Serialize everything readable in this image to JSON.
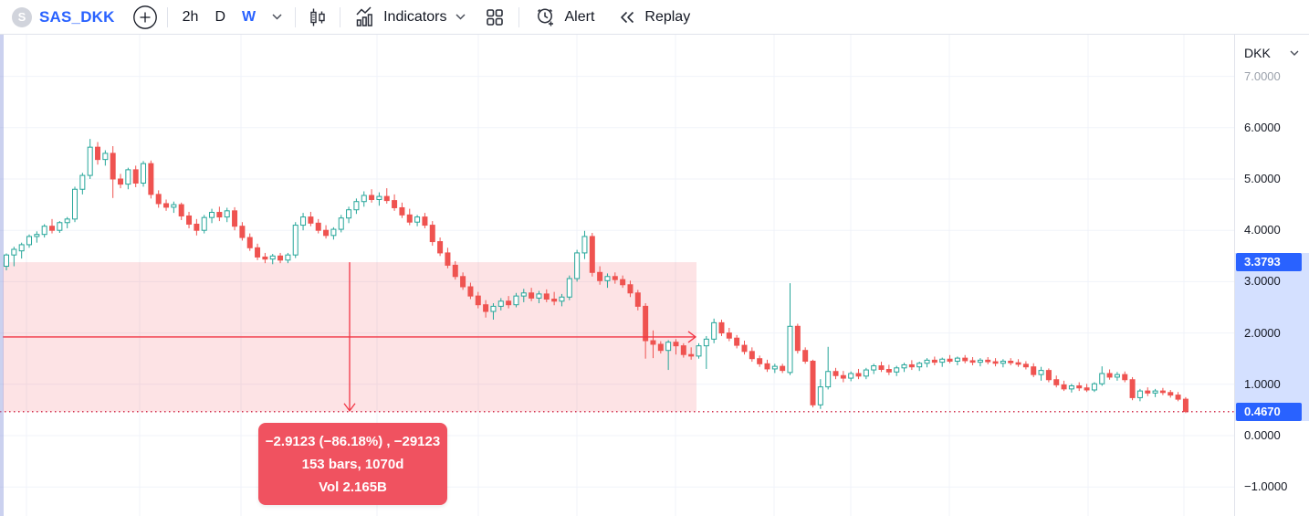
{
  "toolbar": {
    "logo_letter": "S",
    "symbol": "SAS_DKK",
    "intervals": [
      {
        "label": "2h",
        "active": false
      },
      {
        "label": "D",
        "active": false
      },
      {
        "label": "W",
        "active": true
      }
    ],
    "indicators_label": "Indicators",
    "alert_label": "Alert",
    "replay_label": "Replay"
  },
  "price_axis": {
    "currency": "DKK",
    "labels": [
      "7.0000",
      "6.0000",
      "5.0000",
      "4.0000",
      "3.0000",
      "2.0000",
      "1.0000",
      "0.0000",
      "−1.0000"
    ],
    "badges": [
      {
        "value": "3.3793",
        "price": 3.3793
      },
      {
        "value": "0.4670",
        "price": 0.467
      }
    ]
  },
  "measure_tool": {
    "line1": "−2.9123 (−86.18%) , −29123",
    "line2": "153 bars, 1070d",
    "line3": "Vol 2.165B",
    "start_price": 3.3793,
    "end_price": 0.467,
    "x_start": 3,
    "x_end": 763
  },
  "colors": {
    "accent_blue": "#2962ff",
    "up_candle": "#26a69a",
    "down_candle": "#ef5350",
    "measure_red": "#f23645",
    "measure_fill": "rgba(242,54,69,0.14)",
    "dotted_line": "#d2304e",
    "grid": "#f0f3fa",
    "badge_bg": "#2962ff"
  },
  "chart_data": {
    "type": "candlestick",
    "symbol": "SAS_DKK",
    "interval": "W",
    "currency": "DKK",
    "ylim": [
      -1.6,
      7.4
    ],
    "y_axis_ticks": [
      7,
      6,
      5,
      4,
      3,
      2,
      1,
      0,
      -1
    ],
    "last_price": 0.467,
    "measured_change": -2.9123,
    "measured_change_pct": -86.18,
    "measured_bars": 153,
    "measured_days": 1070,
    "measured_volume": "2.165B",
    "candles": [
      [
        3.3,
        3.55,
        3.22,
        3.52
      ],
      [
        3.52,
        3.68,
        3.3,
        3.63
      ],
      [
        3.6,
        3.76,
        3.45,
        3.72
      ],
      [
        3.72,
        3.92,
        3.66,
        3.88
      ],
      [
        3.88,
        3.98,
        3.76,
        3.92
      ],
      [
        3.92,
        4.12,
        3.86,
        4.08
      ],
      [
        4.08,
        4.22,
        3.94,
        4.0
      ],
      [
        4.0,
        4.18,
        3.95,
        4.15
      ],
      [
        4.15,
        4.26,
        4.04,
        4.22
      ],
      [
        4.22,
        4.85,
        4.16,
        4.8
      ],
      [
        4.8,
        5.12,
        4.7,
        5.07
      ],
      [
        5.07,
        5.78,
        5.0,
        5.62
      ],
      [
        5.62,
        5.72,
        5.28,
        5.38
      ],
      [
        5.38,
        5.56,
        5.26,
        5.5
      ],
      [
        5.5,
        5.64,
        4.63,
        5.0
      ],
      [
        5.0,
        5.1,
        4.82,
        4.9
      ],
      [
        4.9,
        5.22,
        4.8,
        5.18
      ],
      [
        5.18,
        5.26,
        4.84,
        4.92
      ],
      [
        4.92,
        5.35,
        4.85,
        5.3
      ],
      [
        5.3,
        5.36,
        4.62,
        4.7
      ],
      [
        4.7,
        4.78,
        4.44,
        4.52
      ],
      [
        4.52,
        4.6,
        4.38,
        4.45
      ],
      [
        4.45,
        4.56,
        4.34,
        4.5
      ],
      [
        4.5,
        4.54,
        4.2,
        4.28
      ],
      [
        4.28,
        4.36,
        4.04,
        4.12
      ],
      [
        4.12,
        4.22,
        3.9,
        4.0
      ],
      [
        4.0,
        4.3,
        3.94,
        4.25
      ],
      [
        4.25,
        4.42,
        4.14,
        4.35
      ],
      [
        4.35,
        4.46,
        4.18,
        4.26
      ],
      [
        4.26,
        4.44,
        4.16,
        4.38
      ],
      [
        4.38,
        4.45,
        4.0,
        4.08
      ],
      [
        4.08,
        4.16,
        3.8,
        3.86
      ],
      [
        3.86,
        3.94,
        3.6,
        3.66
      ],
      [
        3.66,
        3.74,
        3.42,
        3.48
      ],
      [
        3.48,
        3.56,
        3.36,
        3.44
      ],
      [
        3.44,
        3.54,
        3.34,
        3.5
      ],
      [
        3.5,
        3.56,
        3.36,
        3.42
      ],
      [
        3.42,
        3.56,
        3.36,
        3.52
      ],
      [
        3.52,
        4.16,
        3.46,
        4.1
      ],
      [
        4.1,
        4.34,
        4.0,
        4.26
      ],
      [
        4.26,
        4.36,
        4.08,
        4.14
      ],
      [
        4.14,
        4.22,
        3.94,
        4.0
      ],
      [
        4.0,
        4.1,
        3.84,
        3.9
      ],
      [
        3.9,
        4.06,
        3.82,
        4.02
      ],
      [
        4.02,
        4.3,
        3.96,
        4.24
      ],
      [
        4.24,
        4.46,
        4.14,
        4.4
      ],
      [
        4.4,
        4.62,
        4.32,
        4.56
      ],
      [
        4.56,
        4.76,
        4.46,
        4.68
      ],
      [
        4.68,
        4.8,
        4.54,
        4.6
      ],
      [
        4.6,
        4.74,
        4.48,
        4.66
      ],
      [
        4.66,
        4.82,
        4.52,
        4.58
      ],
      [
        4.58,
        4.7,
        4.38,
        4.44
      ],
      [
        4.44,
        4.54,
        4.24,
        4.3
      ],
      [
        4.3,
        4.42,
        4.1,
        4.16
      ],
      [
        4.16,
        4.3,
        4.08,
        4.26
      ],
      [
        4.26,
        4.34,
        4.04,
        4.1
      ],
      [
        4.1,
        4.18,
        3.7,
        3.78
      ],
      [
        3.78,
        3.86,
        3.5,
        3.56
      ],
      [
        3.56,
        3.66,
        3.26,
        3.32
      ],
      [
        3.32,
        3.4,
        3.04,
        3.1
      ],
      [
        3.1,
        3.18,
        2.84,
        2.9
      ],
      [
        2.9,
        2.98,
        2.66,
        2.72
      ],
      [
        2.72,
        2.8,
        2.48,
        2.55
      ],
      [
        2.55,
        2.64,
        2.3,
        2.42
      ],
      [
        2.42,
        2.58,
        2.26,
        2.52
      ],
      [
        2.52,
        2.68,
        2.44,
        2.62
      ],
      [
        2.62,
        2.72,
        2.48,
        2.55
      ],
      [
        2.55,
        2.78,
        2.5,
        2.72
      ],
      [
        2.72,
        2.86,
        2.6,
        2.78
      ],
      [
        2.78,
        2.88,
        2.62,
        2.68
      ],
      [
        2.68,
        2.82,
        2.58,
        2.76
      ],
      [
        2.76,
        2.85,
        2.6,
        2.66
      ],
      [
        2.66,
        2.8,
        2.54,
        2.62
      ],
      [
        2.62,
        2.76,
        2.52,
        2.7
      ],
      [
        2.7,
        3.12,
        2.64,
        3.06
      ],
      [
        3.06,
        3.62,
        3.0,
        3.56
      ],
      [
        3.56,
        3.99,
        3.44,
        3.88
      ],
      [
        3.88,
        3.95,
        3.1,
        3.18
      ],
      [
        3.18,
        3.3,
        2.94,
        3.02
      ],
      [
        3.02,
        3.16,
        2.88,
        3.1
      ],
      [
        3.1,
        3.18,
        2.96,
        3.04
      ],
      [
        3.04,
        3.12,
        2.88,
        2.94
      ],
      [
        2.94,
        3.02,
        2.7,
        2.78
      ],
      [
        2.78,
        2.84,
        2.44,
        2.52
      ],
      [
        2.52,
        2.58,
        1.5,
        1.85
      ],
      [
        1.85,
        2.05,
        1.51,
        1.78
      ],
      [
        1.78,
        1.84,
        1.6,
        1.66
      ],
      [
        1.66,
        1.86,
        1.28,
        1.82
      ],
      [
        1.82,
        1.88,
        1.58,
        1.75
      ],
      [
        1.75,
        1.8,
        1.52,
        1.58
      ],
      [
        1.58,
        1.72,
        1.48,
        1.55
      ],
      [
        1.55,
        1.8,
        1.5,
        1.75
      ],
      [
        1.75,
        1.94,
        1.3,
        1.88
      ],
      [
        1.88,
        2.28,
        1.8,
        2.2
      ],
      [
        2.2,
        2.26,
        1.94,
        2.0
      ],
      [
        2.0,
        2.1,
        1.84,
        1.9
      ],
      [
        1.9,
        1.96,
        1.7,
        1.76
      ],
      [
        1.76,
        1.85,
        1.58,
        1.64
      ],
      [
        1.64,
        1.72,
        1.44,
        1.5
      ],
      [
        1.5,
        1.56,
        1.34,
        1.4
      ],
      [
        1.4,
        1.48,
        1.24,
        1.3
      ],
      [
        1.3,
        1.4,
        1.22,
        1.35
      ],
      [
        1.35,
        1.4,
        1.22,
        1.27
      ],
      [
        1.23,
        2.97,
        1.18,
        2.13
      ],
      [
        2.13,
        2.18,
        1.6,
        1.66
      ],
      [
        1.66,
        1.72,
        1.4,
        1.45
      ],
      [
        1.45,
        1.48,
        0.55,
        0.6
      ],
      [
        0.6,
        1.1,
        0.52,
        0.95
      ],
      [
        0.95,
        1.73,
        0.9,
        1.25
      ],
      [
        1.25,
        1.32,
        1.1,
        1.17
      ],
      [
        1.17,
        1.26,
        1.04,
        1.12
      ],
      [
        1.12,
        1.25,
        1.06,
        1.21
      ],
      [
        1.21,
        1.3,
        1.1,
        1.16
      ],
      [
        1.16,
        1.32,
        1.1,
        1.28
      ],
      [
        1.28,
        1.4,
        1.2,
        1.36
      ],
      [
        1.36,
        1.44,
        1.24,
        1.29
      ],
      [
        1.29,
        1.38,
        1.18,
        1.24
      ],
      [
        1.24,
        1.36,
        1.16,
        1.32
      ],
      [
        1.32,
        1.42,
        1.24,
        1.38
      ],
      [
        1.38,
        1.47,
        1.28,
        1.34
      ],
      [
        1.34,
        1.44,
        1.26,
        1.41
      ],
      [
        1.41,
        1.51,
        1.33,
        1.47
      ],
      [
        1.47,
        1.54,
        1.37,
        1.43
      ],
      [
        1.43,
        1.52,
        1.34,
        1.49
      ],
      [
        1.49,
        1.57,
        1.41,
        1.45
      ],
      [
        1.45,
        1.54,
        1.37,
        1.51
      ],
      [
        1.51,
        1.57,
        1.41,
        1.46
      ],
      [
        1.46,
        1.53,
        1.37,
        1.43
      ],
      [
        1.43,
        1.51,
        1.35,
        1.47
      ],
      [
        1.47,
        1.53,
        1.39,
        1.44
      ],
      [
        1.44,
        1.51,
        1.35,
        1.41
      ],
      [
        1.41,
        1.49,
        1.33,
        1.45
      ],
      [
        1.45,
        1.51,
        1.37,
        1.42
      ],
      [
        1.42,
        1.49,
        1.34,
        1.39
      ],
      [
        1.39,
        1.45,
        1.29,
        1.34
      ],
      [
        1.34,
        1.41,
        1.14,
        1.19
      ],
      [
        1.19,
        1.34,
        1.07,
        1.27
      ],
      [
        1.27,
        1.31,
        1.04,
        1.09
      ],
      [
        1.09,
        1.17,
        0.94,
        0.99
      ],
      [
        0.99,
        1.07,
        0.87,
        0.91
      ],
      [
        0.91,
        1.01,
        0.84,
        0.97
      ],
      [
        0.97,
        1.04,
        0.87,
        0.93
      ],
      [
        0.93,
        1.01,
        0.85,
        0.89
      ],
      [
        0.89,
        1.04,
        0.85,
        1.01
      ],
      [
        1.01,
        1.35,
        0.97,
        1.21
      ],
      [
        1.21,
        1.29,
        1.09,
        1.14
      ],
      [
        1.14,
        1.24,
        1.07,
        1.19
      ],
      [
        1.19,
        1.25,
        1.04,
        1.09
      ],
      [
        1.09,
        1.14,
        0.69,
        0.74
      ],
      [
        0.74,
        0.91,
        0.67,
        0.87
      ],
      [
        0.87,
        0.94,
        0.77,
        0.83
      ],
      [
        0.83,
        0.91,
        0.75,
        0.87
      ],
      [
        0.87,
        0.93,
        0.79,
        0.84
      ],
      [
        0.84,
        0.89,
        0.74,
        0.79
      ],
      [
        0.79,
        0.85,
        0.67,
        0.71
      ],
      [
        0.71,
        0.75,
        0.44,
        0.47
      ]
    ]
  }
}
